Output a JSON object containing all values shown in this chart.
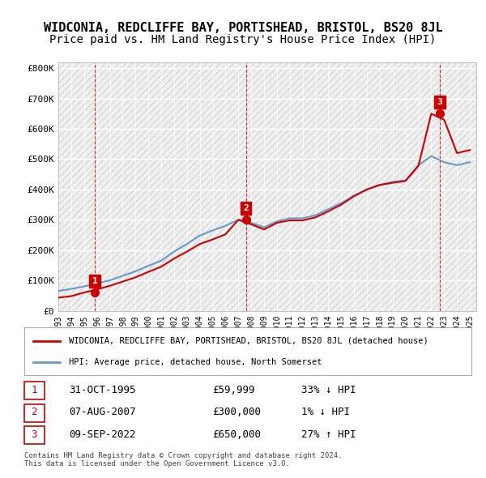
{
  "title": "WIDCONIA, REDCLIFFE BAY, PORTISHEAD, BRISTOL, BS20 8JL",
  "subtitle": "Price paid vs. HM Land Registry's House Price Index (HPI)",
  "title_fontsize": 11,
  "subtitle_fontsize": 10,
  "background_color": "#ffffff",
  "plot_bg_color": "#f0f0f0",
  "hatch_color": "#d8d8d8",
  "grid_color": "#ffffff",
  "ylabel": "",
  "ylim": [
    0,
    820000
  ],
  "yticks": [
    0,
    100000,
    200000,
    300000,
    400000,
    500000,
    600000,
    700000,
    800000
  ],
  "ytick_labels": [
    "£0",
    "£100K",
    "£200K",
    "£300K",
    "£400K",
    "£500K",
    "£600K",
    "£700K",
    "£800K"
  ],
  "xlim_start": 1993.0,
  "xlim_end": 2025.5,
  "sale_dates": [
    1995.833,
    2007.583,
    2022.667
  ],
  "sale_prices": [
    59999,
    300000,
    650000
  ],
  "sale_labels": [
    "1",
    "2",
    "3"
  ],
  "hpi_years": [
    1993,
    1994,
    1995,
    1996,
    1997,
    1998,
    1999,
    2000,
    2001,
    2002,
    2003,
    2004,
    2005,
    2006,
    2007,
    2008,
    2009,
    2010,
    2011,
    2012,
    2013,
    2014,
    2015,
    2016,
    2017,
    2018,
    2019,
    2020,
    2021,
    2022,
    2023,
    2024,
    2025
  ],
  "hpi_values": [
    65000,
    72000,
    80000,
    90000,
    100000,
    115000,
    130000,
    148000,
    165000,
    195000,
    220000,
    248000,
    265000,
    280000,
    300000,
    290000,
    275000,
    295000,
    305000,
    305000,
    315000,
    335000,
    355000,
    380000,
    400000,
    415000,
    425000,
    430000,
    480000,
    510000,
    490000,
    480000,
    490000
  ],
  "property_years": [
    1993,
    1994,
    1995,
    1996,
    1997,
    1998,
    1999,
    2000,
    2001,
    2002,
    2003,
    2004,
    2005,
    2006,
    2007,
    2008,
    2009,
    2010,
    2011,
    2012,
    2013,
    2014,
    2015,
    2016,
    2017,
    2018,
    2019,
    2020,
    2021,
    2022,
    2023,
    2024,
    2025
  ],
  "property_values": [
    43000,
    48000,
    59999,
    70000,
    82000,
    96000,
    110000,
    128000,
    145000,
    172000,
    195000,
    220000,
    235000,
    252000,
    300000,
    285000,
    268000,
    290000,
    298000,
    298000,
    308000,
    328000,
    350000,
    378000,
    400000,
    415000,
    422000,
    428000,
    478000,
    650000,
    630000,
    520000,
    530000
  ],
  "sale_line_color": "#cc0000",
  "hpi_line_color": "#6699cc",
  "dashed_line_color": "#cc0000",
  "annotation_box_color": "#cc0000",
  "legend_house_label": "WIDCONIA, REDCLIFFE BAY, PORTISHEAD, BRISTOL, BS20 8JL (detached house)",
  "legend_hpi_label": "HPI: Average price, detached house, North Somerset",
  "table_data": [
    [
      "1",
      "31-OCT-1995",
      "£59,999",
      "33% ↓ HPI"
    ],
    [
      "2",
      "07-AUG-2007",
      "£300,000",
      "1% ↓ HPI"
    ],
    [
      "3",
      "09-SEP-2022",
      "£650,000",
      "27% ↑ HPI"
    ]
  ],
  "footer_text": "Contains HM Land Registry data © Crown copyright and database right 2024.\nThis data is licensed under the Open Government Licence v3.0.",
  "font_family": "monospace"
}
